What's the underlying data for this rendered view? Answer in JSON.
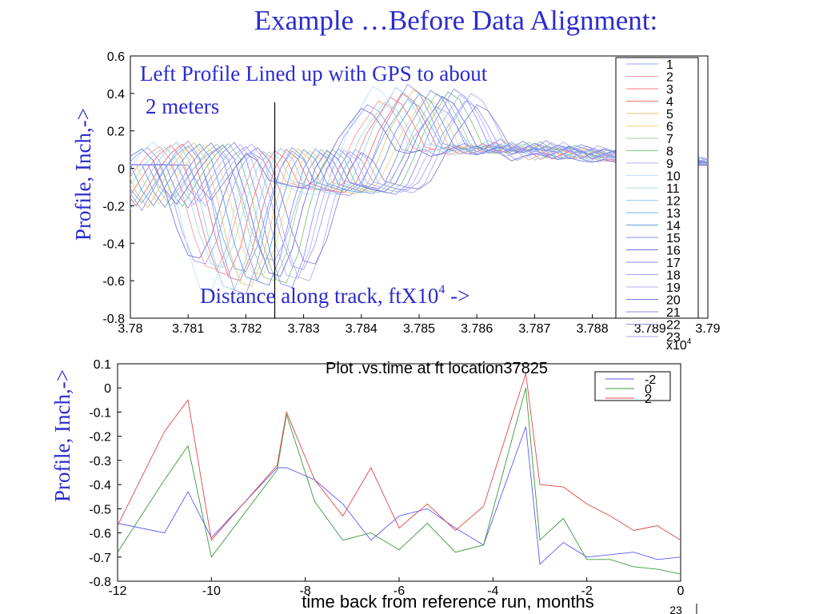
{
  "slide": {
    "title": "Example …Before Data Alignment:",
    "annotation_line1": "Left Profile Lined up with GPS to about",
    "annotation_line2": "2 meters",
    "top_xlabel": "Distance along track, ftX10",
    "top_xlabel_sup": "4",
    "top_xlabel_arrow": " ->",
    "top_ylabel": "Profile, Inch,->",
    "bottom_title": "Plot .vs.time at ft location37825",
    "bottom_ylabel": "Profile, Inch,->",
    "bottom_xlabel": "time back from reference run, months",
    "top_exponent": "x10",
    "top_exponent_sup": "4",
    "bottom_trailing_label": "23"
  },
  "colors": {
    "title_text": "#2b2bd0",
    "series_palette": [
      "#9aa0ff",
      "#ff9a9a",
      "#ff7a7a",
      "#e87070",
      "#f0c070",
      "#ffd080",
      "#a0d0a0",
      "#80c880",
      "#b0b0ff",
      "#c0e0ff",
      "#a0e0e0",
      "#90d0f0",
      "#70b0e8",
      "#60a0e0",
      "#8090f0",
      "#7070e0",
      "#9090ff",
      "#a0a0f8",
      "#b0b0f0",
      "#7878d8",
      "#8888e0",
      "#9898e8",
      "#a8a8f0"
    ]
  },
  "chart_data": [
    {
      "type": "line",
      "xlim": [
        3.78,
        3.79
      ],
      "ylim": [
        -0.8,
        0.6
      ],
      "x_ticks": [
        "3.78",
        "3.781",
        "3.782",
        "3.783",
        "3.784",
        "3.785",
        "3.786",
        "3.787",
        "3.788",
        "3.789",
        "3.79"
      ],
      "y_ticks": [
        "0.6",
        "0.4",
        "0.2",
        "0",
        "-0.2",
        "-0.4",
        "-0.6",
        "-0.8"
      ],
      "grid": false,
      "legend_placement": "right, inside plot",
      "marker_x": 3.7825,
      "base_profile": {
        "x": [
          3.78,
          3.7802,
          3.7804,
          3.7806,
          3.7808,
          3.781,
          3.7812,
          3.7814,
          3.7816,
          3.7818,
          3.782,
          3.7822,
          3.7824,
          3.7826,
          3.7828,
          3.783,
          3.7832,
          3.7834,
          3.7836,
          3.7838,
          3.784,
          3.7842,
          3.7844,
          3.7846,
          3.7848,
          3.785,
          3.7852,
          3.7854,
          3.7856,
          3.7858,
          3.786,
          3.7862,
          3.7864,
          3.7866,
          3.7868,
          3.787,
          3.7872,
          3.7874,
          3.7876,
          3.7878,
          3.788,
          3.7882,
          3.7884,
          3.7886,
          3.7888,
          3.789,
          3.7892,
          3.7894,
          3.7896,
          3.7898,
          3.79
        ],
        "y": [
          0.02,
          -0.12,
          -0.2,
          -0.1,
          0.0,
          0.08,
          0.13,
          0.05,
          -0.15,
          -0.4,
          -0.58,
          -0.6,
          -0.45,
          -0.2,
          0.0,
          0.1,
          0.05,
          -0.08,
          -0.1,
          -0.12,
          -0.13,
          -0.08,
          0.05,
          0.2,
          0.3,
          0.4,
          0.36,
          0.25,
          0.12,
          0.1,
          0.12,
          0.08,
          0.1,
          0.14,
          0.1,
          0.09,
          0.12,
          0.1,
          0.05,
          0.08,
          0.1,
          0.08,
          0.06,
          0.07,
          0.05,
          0.04,
          0.06,
          0.04,
          0.03,
          0.03,
          0.02
        ]
      },
      "series": [
        {
          "name": "1",
          "shift": -0.0009,
          "scale": 0.85
        },
        {
          "name": "2",
          "shift": -0.0007,
          "scale": 0.9
        },
        {
          "name": "3",
          "shift": -0.0005,
          "scale": 0.95
        },
        {
          "name": "4",
          "shift": -0.0003,
          "scale": 1.0
        },
        {
          "name": "5",
          "shift": -0.0001,
          "scale": 1.05
        },
        {
          "name": "6",
          "shift": 0.0001,
          "scale": 0.95
        },
        {
          "name": "7",
          "shift": 0.0003,
          "scale": 1.0
        },
        {
          "name": "8",
          "shift": 0.0005,
          "scale": 1.02
        },
        {
          "name": "9",
          "shift": 0.0007,
          "scale": 0.98
        },
        {
          "name": "10",
          "shift": -0.0008,
          "scale": 1.1
        },
        {
          "name": "11",
          "shift": -0.0006,
          "scale": 0.88
        },
        {
          "name": "12",
          "shift": -0.0004,
          "scale": 1.08
        },
        {
          "name": "13",
          "shift": -0.0002,
          "scale": 0.92
        },
        {
          "name": "14",
          "shift": 0.0,
          "scale": 1.0
        },
        {
          "name": "15",
          "shift": 0.0002,
          "scale": 1.04
        },
        {
          "name": "16",
          "shift": 0.0004,
          "scale": 0.96
        },
        {
          "name": "17",
          "shift": 0.0006,
          "scale": 1.06
        },
        {
          "name": "18",
          "shift": 0.0008,
          "scale": 0.9
        },
        {
          "name": "19",
          "shift": 0.0009,
          "scale": 1.0
        },
        {
          "name": "20",
          "shift": -0.001,
          "scale": 0.8
        },
        {
          "name": "21",
          "shift": 0.001,
          "scale": 0.85
        },
        {
          "name": "22",
          "shift": -0.0002,
          "scale": 1.12
        },
        {
          "name": "23",
          "shift": 0.0003,
          "scale": 0.82
        }
      ]
    },
    {
      "type": "line",
      "title": "Plot .vs.time at ft location37825",
      "xlabel": "time back from reference run, months",
      "ylabel": "Profile, Inch,->",
      "xlim": [
        -12,
        0
      ],
      "ylim": [
        -0.8,
        0.1
      ],
      "x_ticks": [
        "-12",
        "-10",
        "-8",
        "-6",
        "-4",
        "-2",
        "0"
      ],
      "y_ticks": [
        "0.1",
        "0",
        "-0.1",
        "-0.2",
        "-0.3",
        "-0.4",
        "-0.5",
        "-0.6",
        "-0.7",
        "-0.8"
      ],
      "grid": false,
      "legend_placement": "top-right",
      "x": [
        -12,
        -11,
        -10.5,
        -10,
        -8.6,
        -8.4,
        -7.8,
        -7.2,
        -6.6,
        -6,
        -5.4,
        -4.8,
        -4.2,
        -3.3,
        -3,
        -2.5,
        -2,
        -1.5,
        -1,
        -0.5,
        0
      ],
      "series": [
        {
          "name": "-2",
          "color": "#5a5aff",
          "values": [
            -0.56,
            -0.6,
            -0.43,
            -0.62,
            -0.33,
            -0.33,
            -0.38,
            -0.48,
            -0.63,
            -0.53,
            -0.5,
            -0.58,
            -0.65,
            -0.16,
            -0.73,
            -0.64,
            -0.7,
            -0.69,
            -0.68,
            -0.71,
            -0.7
          ]
        },
        {
          "name": "0",
          "color": "#3a9a3a",
          "values": [
            -0.68,
            -0.38,
            -0.24,
            -0.7,
            -0.34,
            -0.11,
            -0.47,
            -0.63,
            -0.6,
            -0.67,
            -0.56,
            -0.68,
            -0.65,
            0.0,
            -0.63,
            -0.54,
            -0.71,
            -0.71,
            -0.74,
            -0.75,
            -0.77
          ]
        },
        {
          "name": "2",
          "color": "#e04848",
          "values": [
            -0.57,
            -0.18,
            -0.05,
            -0.63,
            -0.32,
            -0.1,
            -0.38,
            -0.53,
            -0.33,
            -0.58,
            -0.48,
            -0.59,
            -0.49,
            0.06,
            -0.4,
            -0.41,
            -0.48,
            -0.53,
            -0.59,
            -0.57,
            -0.63
          ]
        }
      ]
    }
  ]
}
